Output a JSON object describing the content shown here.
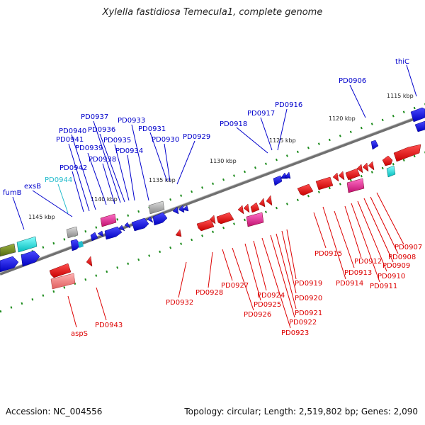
{
  "title": "Xylella fastidiosa Temecula1, complete genome",
  "footer": {
    "accession": "Accession: NC_004556",
    "topology": "Topology: circular; Length: 2,519,802 bp; Genes: 2,090"
  },
  "colors": {
    "forward_label": "#0000cc",
    "reverse_label": "#dd0000",
    "rna_label": "#22bbcc",
    "backbone": "#777777",
    "forward_gene": "#0000ee",
    "reverse_gene": "#ee0000"
  },
  "kbp_ticks": [
    "1115 kbp",
    "1120 kbp",
    "1125 kbp",
    "1130 kbp",
    "1135 kbp",
    "1140 kbp",
    "1145 kbp"
  ],
  "forward_labels": [
    "thiC",
    "PD0906",
    "PD0916",
    "PD0917",
    "PD0918",
    "PD0929",
    "PD0930",
    "PD0931",
    "PD0933",
    "PD0934",
    "PD0935",
    "PD0936",
    "PD0937",
    "PD0938",
    "PD0939",
    "PD0940",
    "PD0941",
    "PD0942",
    "PD0944",
    "exsB",
    "fumB"
  ],
  "reverse_labels": [
    "PD0907",
    "PD0908",
    "PD0909",
    "PD0910",
    "PD0911",
    "PD0912",
    "PD0913",
    "PD0914",
    "PD0915",
    "PD0919",
    "PD0920",
    "PD0921",
    "PD0922",
    "PD0923",
    "PD0924",
    "PD0925",
    "PD0926",
    "PD0927",
    "PD0928",
    "PD0932",
    "PD0943",
    "aspS"
  ]
}
